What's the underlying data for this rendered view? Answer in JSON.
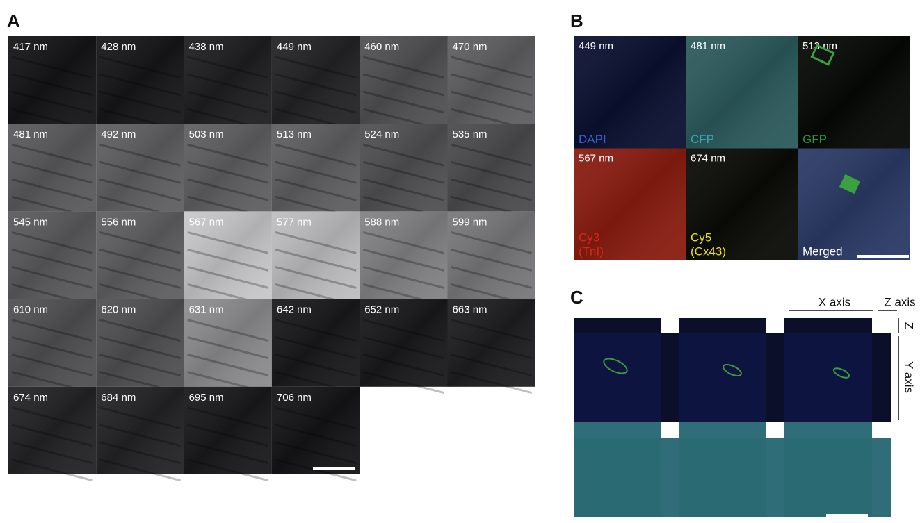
{
  "panels": {
    "a": {
      "label": "A",
      "tiles": [
        "417 nm",
        "428 nm",
        "438 nm",
        "449 nm",
        "460 nm",
        "470 nm",
        "481 nm",
        "492 nm",
        "503 nm",
        "513 nm",
        "524 nm",
        "535 nm",
        "545 nm",
        "556 nm",
        "567 nm",
        "577 nm",
        "588 nm",
        "599 nm",
        "610 nm",
        "620 nm",
        "631 nm",
        "642 nm",
        "652 nm",
        "663 nm",
        "674 nm",
        "684 nm",
        "695 nm",
        "706 nm"
      ]
    },
    "b": {
      "label": "B",
      "tiles": [
        {
          "wavelength": "449 nm",
          "channel": [
            "DAPI"
          ]
        },
        {
          "wavelength": "481 nm",
          "channel": [
            "CFP"
          ]
        },
        {
          "wavelength": "513 nm",
          "channel": [
            "GFP"
          ]
        },
        {
          "wavelength": "567 nm",
          "channel": [
            "Cy3",
            "(TnI)"
          ]
        },
        {
          "wavelength": "674 nm",
          "channel": [
            "Cy5",
            "(Cx43)"
          ]
        },
        {
          "channel": [
            "Merged"
          ]
        }
      ]
    },
    "c": {
      "label": "C",
      "x_axis": "X axis",
      "z_axis": "Z axis",
      "z": "Z",
      "y_axis": "Y axis"
    }
  }
}
